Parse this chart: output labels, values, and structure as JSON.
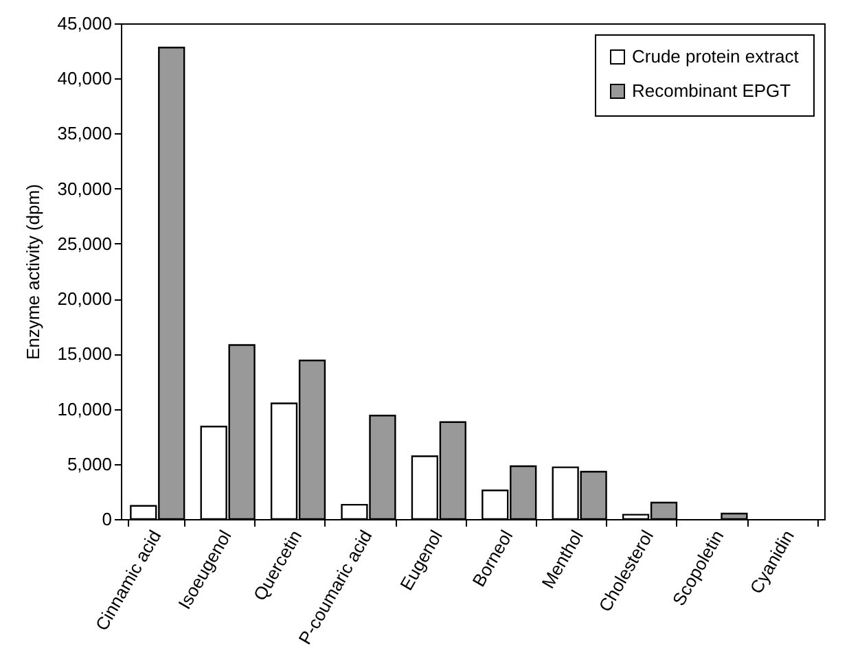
{
  "chart_data": {
    "type": "bar",
    "ylabel": "Enzyme activity (dpm)",
    "categories": [
      "Cinnamic acid",
      "Isoeugenol",
      "Quercetin",
      "P-coumaric acid",
      "Eugenol",
      "Borneol",
      "Menthol",
      "Cholesterol",
      "Scopoletin",
      "Cyanidin"
    ],
    "series": [
      {
        "name": "Crude protein extract",
        "color": "#ffffff",
        "values": [
          1200,
          8400,
          10500,
          1300,
          5700,
          2600,
          4700,
          400,
          null,
          null
        ]
      },
      {
        "name": "Recombinant EPGT",
        "color": "#999999",
        "values": [
          42800,
          15800,
          14400,
          9400,
          8800,
          4800,
          4300,
          1500,
          500,
          null
        ]
      }
    ],
    "ylim": [
      0,
      45000
    ],
    "yticks": [
      {
        "value": 0,
        "label": "0"
      },
      {
        "value": 5000,
        "label": "5,000"
      },
      {
        "value": 10000,
        "label": "10,000"
      },
      {
        "value": 15000,
        "label": "15,000"
      },
      {
        "value": 20000,
        "label": "20,000"
      },
      {
        "value": 25000,
        "label": "25,000"
      },
      {
        "value": 30000,
        "label": "30,000"
      },
      {
        "value": 35000,
        "label": "35,000"
      },
      {
        "value": 40000,
        "label": "40,000"
      },
      {
        "value": 45000,
        "label": "45,000"
      }
    ],
    "grid": false,
    "legend": "top right"
  }
}
